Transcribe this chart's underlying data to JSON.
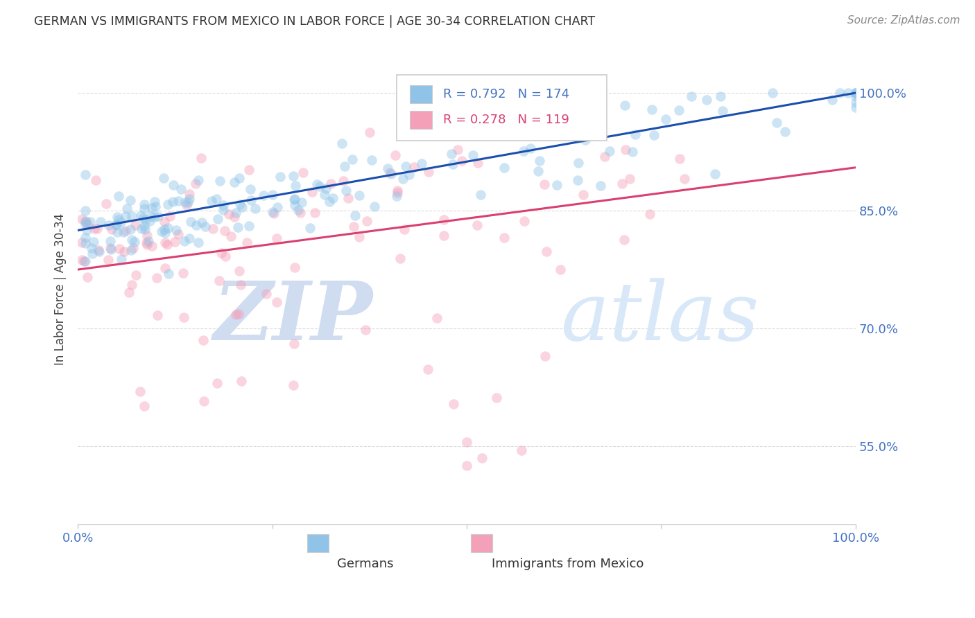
{
  "title": "GERMAN VS IMMIGRANTS FROM MEXICO IN LABOR FORCE | AGE 30-34 CORRELATION CHART",
  "source": "Source: ZipAtlas.com",
  "ylabel": "In Labor Force | Age 30-34",
  "xlim": [
    0.0,
    1.0
  ],
  "ylim": [
    0.45,
    1.05
  ],
  "yticks": [
    0.55,
    0.7,
    0.85,
    1.0
  ],
  "ytick_labels": [
    "55.0%",
    "70.0%",
    "85.0%",
    "100.0%"
  ],
  "blue_R": 0.792,
  "blue_N": 174,
  "pink_R": 0.278,
  "pink_N": 119,
  "blue_color": "#8FC4E8",
  "pink_color": "#F4A0B8",
  "blue_line_color": "#1B4FAD",
  "pink_line_color": "#D94070",
  "title_color": "#333333",
  "axis_color": "#4472C4",
  "source_color": "#888888",
  "legend_blue_text_color": "#4472C4",
  "legend_pink_text_color": "#D94070",
  "background_color": "#FFFFFF",
  "grid_color": "#CCCCCC",
  "scatter_size": 110,
  "scatter_alpha": 0.45,
  "watermark_zip_color": "#D0DCF0",
  "watermark_atlas_color": "#D8E8F8"
}
